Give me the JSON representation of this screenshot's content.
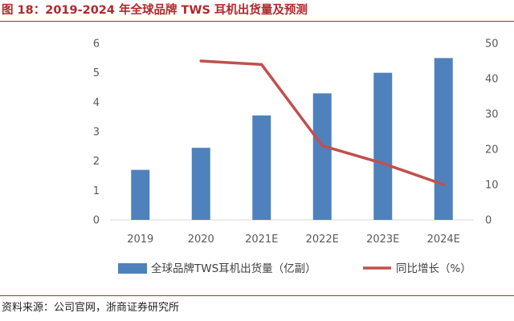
{
  "figure": {
    "title": "图 18：2019-2024 年全球品牌 TWS 耳机出货量及预测",
    "source": "资料来源：公司官网，浙商证券研究所"
  },
  "chart_data": {
    "type": "bar",
    "categories": [
      "2019",
      "2020",
      "2021E",
      "2022E",
      "2023E",
      "2024E"
    ],
    "series": [
      {
        "name": "全球品牌TWS耳机出货量（亿副）",
        "type": "bar",
        "axis": "left",
        "color": "#4f81bd",
        "values": [
          1.7,
          2.45,
          3.55,
          4.3,
          5.0,
          5.5
        ]
      },
      {
        "name": "同比增长（%）",
        "type": "line",
        "axis": "right",
        "color": "#c0504d",
        "values": [
          null,
          45,
          44,
          21,
          16,
          10
        ]
      }
    ],
    "y_left": {
      "ylim": [
        0,
        6
      ],
      "ticks": [
        0,
        1,
        2,
        3,
        4,
        5,
        6
      ]
    },
    "y_right": {
      "ylim": [
        0,
        50
      ],
      "ticks": [
        0,
        10,
        20,
        30,
        40,
        50
      ]
    },
    "grid": false,
    "legend_position": "bottom"
  }
}
